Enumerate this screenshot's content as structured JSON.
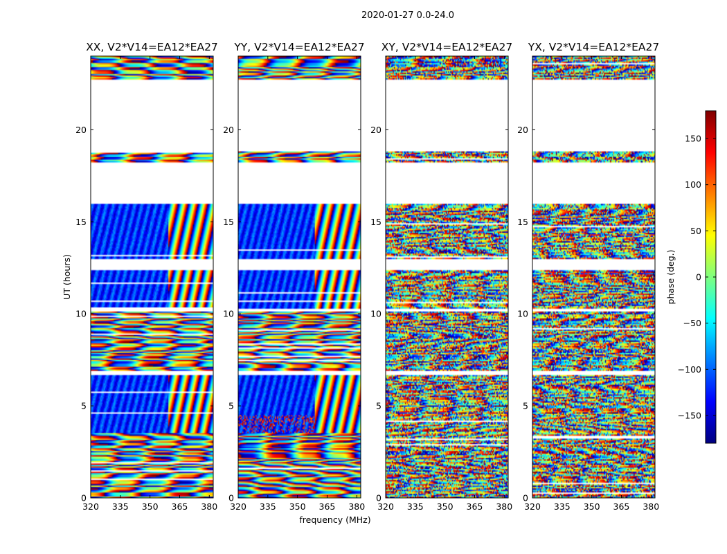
{
  "figure": {
    "suptitle": "2020-01-27 0.0-24.0"
  },
  "chart_data": {
    "type": "heatmap",
    "title": "2020-01-27 0.0-24.0",
    "xlabel": "frequency (MHz)",
    "ylabel": "UT (hours)",
    "xlim": [
      320,
      382
    ],
    "ylim": [
      0,
      24
    ],
    "x_ticks": [
      320,
      335,
      350,
      365,
      380
    ],
    "y_ticks": [
      0,
      5,
      10,
      15,
      20
    ],
    "panels": [
      {
        "title": "XX, V2*V14=EA12*EA27",
        "polarization": "XX"
      },
      {
        "title": "YY, V2*V14=EA12*EA27",
        "polarization": "YY"
      },
      {
        "title": "XY, V2*V14=EA12*EA27",
        "polarization": "XY"
      },
      {
        "title": "YX, V2*V14=EA12*EA27",
        "polarization": "YX"
      }
    ],
    "flagged_time_ranges_hours": [
      [
        18.8,
        22.7
      ],
      [
        16.0,
        18.2
      ],
      [
        12.4,
        13.0
      ],
      [
        10.1,
        10.3
      ],
      [
        6.9,
        6.7
      ]
    ],
    "data_time_ranges_hours": [
      {
        "range": [
          22.7,
          24.0
        ],
        "pattern": "mixed"
      },
      {
        "range": [
          18.2,
          18.8
        ],
        "pattern": "fringe"
      },
      {
        "range": [
          13.0,
          16.0
        ],
        "pattern": "banded"
      },
      {
        "range": [
          10.3,
          12.4
        ],
        "pattern": "smooth"
      },
      {
        "range": [
          6.9,
          10.1
        ],
        "pattern": "fringe"
      },
      {
        "range": [
          2.4,
          6.7
        ],
        "pattern": "mixed"
      },
      {
        "range": [
          0.0,
          2.4
        ],
        "pattern": "fringe"
      }
    ],
    "colorbar": {
      "label": "phase (deg.)",
      "range": [
        -180,
        180
      ],
      "ticks": [
        150,
        100,
        50,
        0,
        -50,
        -100,
        -150
      ],
      "tick_labels": [
        "150",
        "100",
        "50",
        "0",
        "−50",
        "−100",
        "−150"
      ],
      "colormap": "jet",
      "colors": [
        "#00007f",
        "#0000ff",
        "#007fff",
        "#00ffff",
        "#7fff7f",
        "#ffff00",
        "#ff7f00",
        "#ff0000",
        "#7f0000"
      ]
    }
  }
}
